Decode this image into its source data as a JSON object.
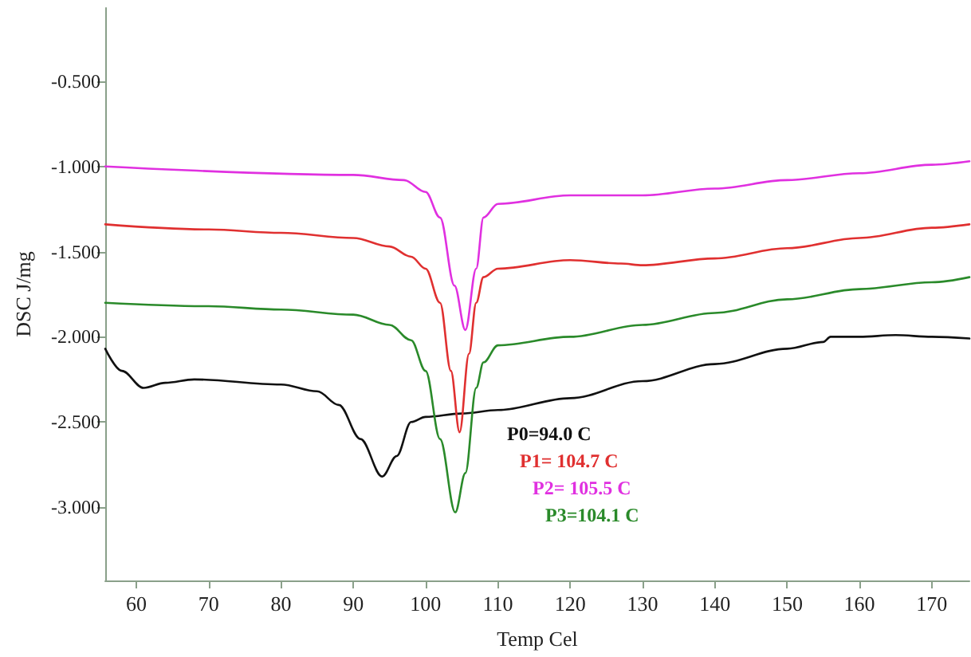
{
  "chart_data": {
    "type": "line",
    "xlabel": "Temp Cel",
    "ylabel": "DSC J/mg",
    "xlim": [
      55.7,
      175.2
    ],
    "ylim": [
      -3.43,
      -0.07
    ],
    "xticks": [
      60,
      70,
      80,
      90,
      100,
      110,
      120,
      130,
      140,
      150,
      160,
      170
    ],
    "yticks": [
      {
        "value": -0.5,
        "label": "-0.500"
      },
      {
        "value": -1,
        "label": "-1.000"
      },
      {
        "value": -1.5,
        "label": "-1.500"
      },
      {
        "value": -2,
        "label": "-2.000"
      },
      {
        "value": -2.5,
        "label": "-2.500"
      },
      {
        "value": -3,
        "label": "-3.000"
      }
    ],
    "grid": false,
    "marker": "none",
    "line_style": "solid",
    "series": [
      {
        "color": "#111111",
        "x": [
          55.7,
          58,
          61,
          64,
          68,
          80,
          85,
          88,
          91,
          94,
          96,
          98,
          100,
          105,
          110,
          120,
          130,
          140,
          150,
          155,
          156,
          160,
          165,
          170,
          175.2
        ],
        "values": [
          -2.07,
          -2.2,
          -2.3,
          -2.27,
          -2.25,
          -2.28,
          -2.32,
          -2.4,
          -2.6,
          -2.82,
          -2.7,
          -2.5,
          -2.47,
          -2.45,
          -2.43,
          -2.36,
          -2.26,
          -2.16,
          -2.07,
          -2.03,
          -2.0,
          -2.0,
          -1.99,
          -2.0,
          -2.01
        ]
      },
      {
        "color": "#e03030",
        "x": [
          55.7,
          70,
          80,
          90,
          95,
          98,
          100,
          102,
          103.5,
          104.7,
          106,
          107,
          108,
          110,
          120,
          127,
          130,
          140,
          150,
          160,
          170,
          175.2
        ],
        "values": [
          -1.34,
          -1.37,
          -1.39,
          -1.42,
          -1.47,
          -1.53,
          -1.6,
          -1.8,
          -2.2,
          -2.56,
          -2.1,
          -1.8,
          -1.65,
          -1.6,
          -1.55,
          -1.57,
          -1.58,
          -1.54,
          -1.48,
          -1.42,
          -1.36,
          -1.34
        ]
      },
      {
        "color": "#e030e0",
        "x": [
          55.7,
          90,
          97,
          100,
          102,
          104,
          105.5,
          107,
          108,
          110,
          120,
          130,
          140,
          150,
          160,
          170,
          175.2
        ],
        "values": [
          -1.0,
          -1.05,
          -1.08,
          -1.15,
          -1.3,
          -1.7,
          -1.96,
          -1.6,
          -1.3,
          -1.22,
          -1.17,
          -1.17,
          -1.13,
          -1.08,
          -1.04,
          -0.99,
          -0.97
        ]
      },
      {
        "color": "#2a8a2a",
        "x": [
          55.7,
          70,
          80,
          90,
          95,
          98,
          100,
          102,
          104.1,
          105.5,
          107,
          108,
          110,
          120,
          130,
          140,
          150,
          160,
          170,
          175.2
        ],
        "values": [
          -1.8,
          -1.82,
          -1.84,
          -1.87,
          -1.93,
          -2.02,
          -2.2,
          -2.6,
          -3.03,
          -2.8,
          -2.3,
          -2.15,
          -2.05,
          -2.0,
          -1.93,
          -1.86,
          -1.78,
          -1.72,
          -1.68,
          -1.65
        ]
      }
    ],
    "annotations": [
      "P0=94.0 C",
      "P1= 104.7 C",
      "P2= 105.5 C",
      "P3=104.1 C"
    ]
  }
}
